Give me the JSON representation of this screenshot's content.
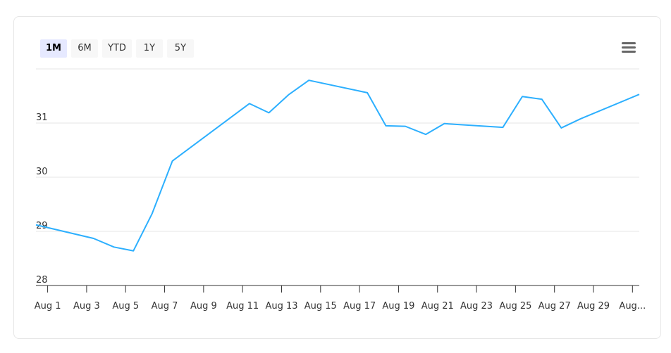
{
  "range_buttons": [
    {
      "label": "1M",
      "selected": true
    },
    {
      "label": "6M",
      "selected": false
    },
    {
      "label": "YTD",
      "selected": false
    },
    {
      "label": "1Y",
      "selected": false
    },
    {
      "label": "5Y",
      "selected": false
    }
  ],
  "chart_data": {
    "type": "line",
    "color": "#2caffe",
    "x": [
      0.4,
      3.35,
      4.4,
      5.4,
      6.35,
      7.4,
      11.35,
      12.35,
      13.35,
      14.4,
      17.4,
      18.35,
      19.35,
      20.4,
      21.35,
      24.35,
      25.35,
      26.35,
      27.35,
      28.35,
      31.35
    ],
    "values": [
      29.12,
      28.87,
      28.71,
      28.64,
      29.32,
      30.3,
      31.36,
      31.19,
      31.52,
      31.79,
      31.56,
      30.95,
      30.94,
      30.79,
      30.99,
      30.92,
      31.49,
      31.44,
      30.91,
      31.08,
      31.53
    ],
    "xlim": [
      0.4,
      31.35
    ],
    "xticks": [
      {
        "value": 1,
        "label": "Aug 1"
      },
      {
        "value": 3,
        "label": "Aug 3"
      },
      {
        "value": 5,
        "label": "Aug 5"
      },
      {
        "value": 7,
        "label": "Aug 7"
      },
      {
        "value": 9,
        "label": "Aug 9"
      },
      {
        "value": 11,
        "label": "Aug 11"
      },
      {
        "value": 13,
        "label": "Aug 13"
      },
      {
        "value": 15,
        "label": "Aug 15"
      },
      {
        "value": 17,
        "label": "Aug 17"
      },
      {
        "value": 19,
        "label": "Aug 19"
      },
      {
        "value": 21,
        "label": "Aug 21"
      },
      {
        "value": 23,
        "label": "Aug 23"
      },
      {
        "value": 25,
        "label": "Aug 25"
      },
      {
        "value": 27,
        "label": "Aug 27"
      },
      {
        "value": 29,
        "label": "Aug 29"
      },
      {
        "value": 31,
        "label": "Aug..."
      }
    ],
    "ylim": [
      28,
      32
    ],
    "yticks": [
      28,
      29,
      30,
      31
    ],
    "grid": true
  }
}
